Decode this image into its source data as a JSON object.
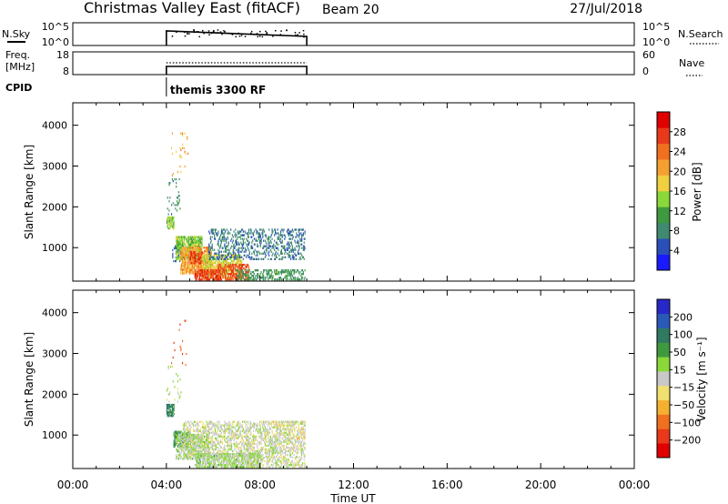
{
  "header": {
    "station": "Christmas Valley East (fitACF)",
    "beam": "Beam 20",
    "date": "27/Jul/2018"
  },
  "summary": {
    "nsky_label": "N.Sky",
    "nsky_ticks": [
      "10^5",
      "10^0"
    ],
    "nsearch_label": "N.Search",
    "nsearch_ticks": [
      "10^5",
      "10^0"
    ],
    "freq_label_line1": "Freq.",
    "freq_label_line2": "[MHz]",
    "freq_ticks": [
      "18",
      "8"
    ],
    "nave_label": "Nave",
    "nave_ticks": [
      "60",
      "0"
    ],
    "cpid_label": "CPID",
    "cpid_value": "themis 3300 RF",
    "operating_start_hour": 4.0,
    "operating_end_hour": 10.0
  },
  "axes": {
    "xlabel": "Time UT",
    "x_ticks": [
      "00:00",
      "04:00",
      "08:00",
      "12:00",
      "16:00",
      "20:00",
      "00:00"
    ],
    "x_tick_hours": [
      0,
      4,
      8,
      12,
      16,
      20,
      24
    ],
    "xlim_hours": [
      0,
      24
    ],
    "ylabel": "Slant Range [km]",
    "y_ticks": [
      "1000",
      "2000",
      "3000",
      "4000"
    ],
    "y_tick_values": [
      1000,
      2000,
      3000,
      4000
    ],
    "ylim_km": [
      180,
      4550
    ]
  },
  "colorbars": {
    "power": {
      "label": "Power [dB]",
      "ticks": [
        "4",
        "8",
        "12",
        "16",
        "20",
        "24",
        "28"
      ],
      "colors": [
        "#1a1aff",
        "#2a4fb8",
        "#3f8a70",
        "#3f9a3f",
        "#8ad83a",
        "#f0d040",
        "#f5a030",
        "#f07020",
        "#e83a1a",
        "#e00000"
      ]
    },
    "velocity": {
      "label": "Velocity [m s⁻¹]",
      "ticks": [
        "200",
        "100",
        "50",
        "15",
        "−15",
        "−50",
        "−100",
        "−200"
      ],
      "colors": [
        "#2828c8",
        "#2a5ab8",
        "#2f7a60",
        "#3f9a3f",
        "#8ad83a",
        "#c8c8c8",
        "#f0e070",
        "#f5b030",
        "#f07020",
        "#e83a1a",
        "#e00000"
      ]
    }
  },
  "chart_data": [
    {
      "type": "heatmap",
      "title": "",
      "variable": "Power",
      "units": "dB",
      "xlabel": "Time UT",
      "ylabel": "Slant Range [km]",
      "xlim": [
        0,
        24
      ],
      "ylim": [
        180,
        4550
      ],
      "clim": [
        0,
        32
      ],
      "grid": false,
      "patches": [
        {
          "t0": 4.0,
          "t1": 4.3,
          "r0": 1450,
          "r1": 1750,
          "value": 14,
          "density": 0.7
        },
        {
          "t0": 4.25,
          "t1": 4.55,
          "r0": 650,
          "r1": 1050,
          "value": 6,
          "density": 0.35
        },
        {
          "t0": 4.4,
          "t1": 5.5,
          "r0": 700,
          "r1": 1250,
          "value": 14,
          "density": 0.75
        },
        {
          "t0": 4.6,
          "t1": 5.9,
          "r0": 350,
          "r1": 1000,
          "value": 21,
          "density": 0.7
        },
        {
          "t0": 5.0,
          "t1": 5.5,
          "r0": 600,
          "r1": 900,
          "value": 27,
          "density": 0.6
        },
        {
          "t0": 5.5,
          "t1": 7.2,
          "r0": 250,
          "r1": 800,
          "value": 17,
          "density": 0.6
        },
        {
          "t0": 5.8,
          "t1": 9.9,
          "r0": 700,
          "r1": 1450,
          "value": 7,
          "density": 0.3
        },
        {
          "t0": 5.2,
          "t1": 6.3,
          "r0": 200,
          "r1": 450,
          "value": 27,
          "density": 0.75
        },
        {
          "t0": 6.2,
          "t1": 7.5,
          "r0": 200,
          "r1": 600,
          "value": 26,
          "density": 0.55
        },
        {
          "t0": 7.0,
          "t1": 9.9,
          "r0": 200,
          "r1": 450,
          "value": 10,
          "density": 0.45
        },
        {
          "t0": 4.0,
          "t1": 4.6,
          "r0": 1800,
          "r1": 2700,
          "value": 9,
          "density": 0.08
        },
        {
          "t0": 4.2,
          "t1": 4.9,
          "r0": 2700,
          "r1": 3800,
          "value": 20,
          "density": 0.03
        }
      ]
    },
    {
      "type": "heatmap",
      "title": "",
      "variable": "Velocity",
      "units": "m s^-1",
      "xlabel": "Time UT",
      "ylabel": "Slant Range [km]",
      "xlim": [
        0,
        24
      ],
      "ylim": [
        180,
        4550
      ],
      "clim": [
        -250,
        250
      ],
      "grid": false,
      "patches": [
        {
          "t0": 4.0,
          "t1": 4.3,
          "r0": 1450,
          "r1": 1750,
          "value": 120,
          "density": 0.7
        },
        {
          "t0": 4.3,
          "t1": 5.0,
          "r0": 700,
          "r1": 1100,
          "value": 90,
          "density": 0.7
        },
        {
          "t0": 4.4,
          "t1": 5.8,
          "r0": 400,
          "r1": 1000,
          "value": 30,
          "density": 0.5
        },
        {
          "t0": 4.7,
          "t1": 9.9,
          "r0": 450,
          "r1": 1350,
          "value": 0,
          "density": 0.45
        },
        {
          "t0": 5.2,
          "t1": 8.0,
          "r0": 200,
          "r1": 550,
          "value": 25,
          "density": 0.65
        },
        {
          "t0": 7.5,
          "t1": 9.9,
          "r0": 200,
          "r1": 450,
          "value": 0,
          "density": 0.4
        },
        {
          "t0": 8.5,
          "t1": 9.9,
          "r0": 900,
          "r1": 1350,
          "value": -40,
          "density": 0.15
        },
        {
          "t0": 4.0,
          "t1": 4.6,
          "r0": 1800,
          "r1": 2700,
          "value": 10,
          "density": 0.08
        },
        {
          "t0": 4.2,
          "t1": 4.9,
          "r0": 2700,
          "r1": 3800,
          "value": -150,
          "density": 0.03
        }
      ]
    }
  ]
}
